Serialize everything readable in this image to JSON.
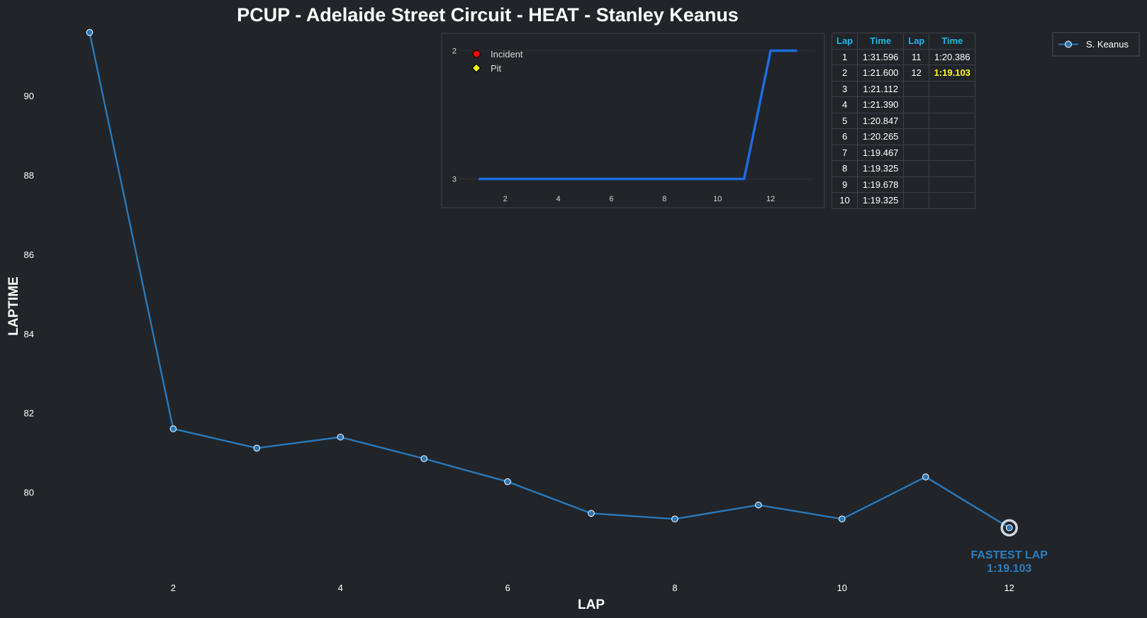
{
  "colors": {
    "background": "#212429",
    "line": "#2a78b8",
    "marker_edge": "#ffffff",
    "fastest": "#2c7fc0",
    "inset_line": "#1c6de0",
    "table_header": "#1fb4e6",
    "fastest_cell": "#ffff1a",
    "incident_marker": "#ff0000",
    "pit_marker": "#ffff00"
  },
  "chart_data": [
    {
      "type": "line",
      "title": "PCUP - Adelaide Street Circuit - HEAT - Stanley Keanus",
      "xlabel": "LAP",
      "ylabel": "LAPTIME",
      "x": [
        1,
        2,
        3,
        4,
        5,
        6,
        7,
        8,
        9,
        10,
        11,
        12
      ],
      "xticks": [
        2,
        4,
        6,
        8,
        10,
        12
      ],
      "yticks": [
        80,
        82,
        84,
        86,
        88,
        90
      ],
      "xlim": [
        0.7,
        13.3
      ],
      "ylim": [
        77.9,
        91.7
      ],
      "grid": false,
      "legend_position": "top-right",
      "series": [
        {
          "name": "S. Keanus",
          "values": [
            91.596,
            81.6,
            81.112,
            81.39,
            80.847,
            80.265,
            79.467,
            79.325,
            79.678,
            79.325,
            80.386,
            79.103
          ]
        }
      ],
      "annotation": {
        "lap": 12,
        "value": 79.103,
        "line1": "FASTEST LAP",
        "line2": "1:19.103"
      }
    },
    {
      "type": "line",
      "x": [
        1,
        2,
        3,
        4,
        5,
        6,
        7,
        8,
        9,
        10,
        11,
        12,
        13
      ],
      "values": [
        3,
        3,
        3,
        3,
        3,
        3,
        3,
        3,
        3,
        3,
        3,
        2,
        2
      ],
      "xticks": [
        2,
        4,
        6,
        8,
        10,
        12
      ],
      "yticks": [
        2,
        3
      ],
      "xlim": [
        0.3,
        13.6
      ],
      "ylim": [
        3.08,
        1.92
      ],
      "y_inverted": true,
      "legend_position": "top-left",
      "legend": [
        {
          "label": "Incident",
          "marker": "circle"
        },
        {
          "label": "Pit",
          "marker": "diamond"
        }
      ]
    }
  ],
  "table": {
    "headers": [
      "Lap",
      "Time",
      "Lap",
      "Time"
    ],
    "rows": [
      [
        "1",
        "1:31.596",
        "11",
        "1:20.386"
      ],
      [
        "2",
        "1:21.600",
        "12",
        "1:19.103"
      ],
      [
        "3",
        "1:21.112",
        "",
        ""
      ],
      [
        "4",
        "1:21.390",
        "",
        ""
      ],
      [
        "5",
        "1:20.847",
        "",
        ""
      ],
      [
        "6",
        "1:20.265",
        "",
        ""
      ],
      [
        "7",
        "1:19.467",
        "",
        ""
      ],
      [
        "8",
        "1:19.325",
        "",
        ""
      ],
      [
        "9",
        "1:19.678",
        "",
        ""
      ],
      [
        "10",
        "1:19.325",
        "",
        ""
      ]
    ],
    "fastest_lap": "12"
  }
}
